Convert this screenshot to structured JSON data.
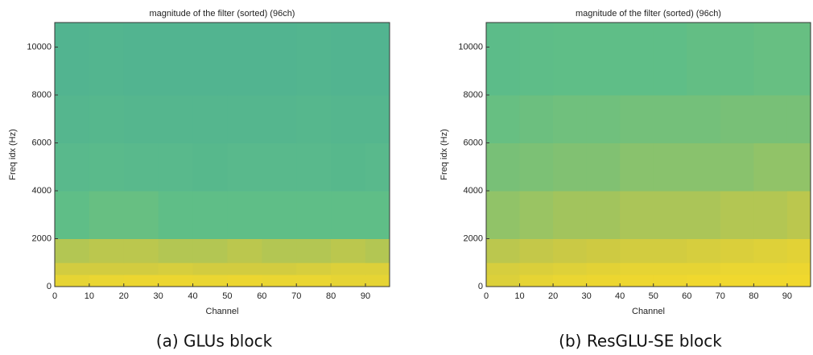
{
  "chart_data": [
    {
      "type": "heatmap",
      "title": "magnitude of the filter (sorted) (96ch)",
      "xlabel": "Channel",
      "ylabel": "Freq idx (Hz)",
      "caption": "(a) GLUs block",
      "xlim": [
        0,
        97
      ],
      "xticks": [
        0,
        10,
        20,
        30,
        40,
        50,
        60,
        70,
        80,
        90
      ],
      "ylim": [
        0,
        11025
      ],
      "yticks": [
        0,
        2000,
        4000,
        6000,
        8000,
        10000
      ],
      "xbins": [
        0,
        10,
        20,
        30,
        40,
        50,
        60,
        70,
        80,
        90,
        97
      ],
      "ybins": [
        0,
        500,
        1000,
        2000,
        4000,
        6000,
        8000,
        11025
      ],
      "z": [
        [
          0.9,
          0.92,
          0.93,
          0.93,
          0.92,
          0.93,
          0.92,
          0.92,
          0.9,
          0.9
        ],
        [
          0.8,
          0.8,
          0.8,
          0.82,
          0.8,
          0.8,
          0.8,
          0.82,
          0.85,
          0.85
        ],
        [
          0.7,
          0.72,
          0.72,
          0.7,
          0.7,
          0.72,
          0.7,
          0.7,
          0.72,
          0.7
        ],
        [
          0.5,
          0.52,
          0.52,
          0.5,
          0.5,
          0.5,
          0.5,
          0.5,
          0.5,
          0.5
        ],
        [
          0.45,
          0.46,
          0.45,
          0.45,
          0.44,
          0.45,
          0.45,
          0.45,
          0.44,
          0.45
        ],
        [
          0.42,
          0.43,
          0.42,
          0.42,
          0.42,
          0.42,
          0.42,
          0.43,
          0.42,
          0.42
        ],
        [
          0.4,
          0.41,
          0.4,
          0.4,
          0.4,
          0.4,
          0.4,
          0.41,
          0.4,
          0.4
        ]
      ]
    },
    {
      "type": "heatmap",
      "title": "magnitude of the filter (sorted) (96ch)",
      "xlabel": "Channel",
      "ylabel": "Freq idx (Hz)",
      "caption": "(b) ResGLU-SE block",
      "xlim": [
        0,
        97
      ],
      "xticks": [
        0,
        10,
        20,
        30,
        40,
        50,
        60,
        70,
        80,
        90
      ],
      "ylim": [
        0,
        11025
      ],
      "yticks": [
        0,
        2000,
        4000,
        6000,
        8000,
        10000
      ],
      "xbins": [
        0,
        10,
        20,
        30,
        40,
        50,
        60,
        70,
        80,
        90,
        97
      ],
      "ybins": [
        0,
        500,
        1000,
        2000,
        4000,
        6000,
        8000,
        11025
      ],
      "z": [
        [
          0.85,
          0.9,
          0.92,
          0.93,
          0.94,
          0.94,
          0.95,
          0.95,
          0.95,
          0.95
        ],
        [
          0.82,
          0.84,
          0.86,
          0.88,
          0.9,
          0.9,
          0.9,
          0.92,
          0.92,
          0.93
        ],
        [
          0.72,
          0.74,
          0.76,
          0.78,
          0.8,
          0.8,
          0.82,
          0.84,
          0.86,
          0.88
        ],
        [
          0.62,
          0.64,
          0.66,
          0.66,
          0.68,
          0.68,
          0.68,
          0.7,
          0.7,
          0.72
        ],
        [
          0.56,
          0.57,
          0.58,
          0.58,
          0.6,
          0.6,
          0.6,
          0.6,
          0.62,
          0.62
        ],
        [
          0.52,
          0.53,
          0.54,
          0.54,
          0.55,
          0.55,
          0.55,
          0.56,
          0.56,
          0.56
        ],
        [
          0.48,
          0.49,
          0.5,
          0.5,
          0.5,
          0.5,
          0.51,
          0.51,
          0.52,
          0.52
        ]
      ]
    }
  ]
}
